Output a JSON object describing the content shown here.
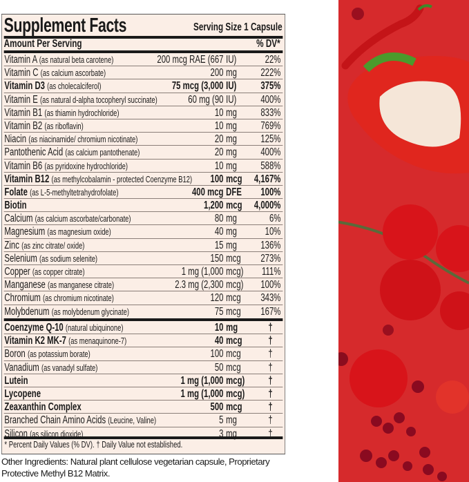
{
  "title": "Supplement Facts",
  "serving_size": "Serving Size 1 Capsule",
  "header": {
    "amount": "Amount Per Serving",
    "dv": "% DV*"
  },
  "section1": [
    {
      "name": "Vitamin A",
      "source": "(as natural beta carotene)",
      "qty": "200 mcg RAE (667",
      "unit": "IU)",
      "dv": "22%",
      "bold": false
    },
    {
      "name": "Vitamin C",
      "source": "(as calcium ascorbate)",
      "qty": "200",
      "unit": "mg",
      "dv": "222%",
      "bold": false
    },
    {
      "name": "Vitamin D3",
      "source": "(as cholecalciferol)",
      "qty": "75 mcg (3,000",
      "unit": "IU)",
      "dv": "375%",
      "bold": true
    },
    {
      "name": "Vitamin E",
      "source": "(as natural d-alpha tocopheryl succinate)",
      "qty": "60 mg (90",
      "unit": "IU)",
      "dv": "400%",
      "bold": false
    },
    {
      "name": "Vitamin B1",
      "source": "(as thiamin hydrochloride)",
      "qty": "10",
      "unit": "mg",
      "dv": "833%",
      "bold": false
    },
    {
      "name": "Vitamin B2",
      "source": "(as riboflavin)",
      "qty": "10",
      "unit": "mg",
      "dv": "769%",
      "bold": false
    },
    {
      "name": "Niacin",
      "source": "(as niacinamide/ chromium nicotinate)",
      "qty": "20",
      "unit": "mg",
      "dv": "125%",
      "bold": false
    },
    {
      "name": "Pantothenic Acid",
      "source": "(as calcium pantothenate)",
      "qty": "20",
      "unit": "mg",
      "dv": "400%",
      "bold": false
    },
    {
      "name": "Vitamin B6",
      "source": "(as pyridoxine hydrochloride)",
      "qty": "10",
      "unit": "mg",
      "dv": "588%",
      "bold": false
    },
    {
      "name": "Vitamin B12",
      "source": "(as methylcobalamin - protected Coenzyme B12)",
      "qty": "100",
      "unit": "mcg",
      "dv": "4,167%",
      "bold": true
    },
    {
      "name": "Folate",
      "source": "(as L-5-methyltetrahydrofolate)",
      "qty": "400 mcg",
      "unit": "DFE",
      "dv": "100%",
      "bold": true
    },
    {
      "name": "Biotin",
      "source": "",
      "qty": "1,200",
      "unit": "mcg",
      "dv": "4,000%",
      "bold": true
    },
    {
      "name": "Calcium",
      "source": "(as calcium ascorbate/carbonate)",
      "qty": "80",
      "unit": "mg",
      "dv": "6%",
      "bold": false
    },
    {
      "name": "Magnesium",
      "source": "(as magnesium oxide)",
      "qty": "40",
      "unit": "mg",
      "dv": "10%",
      "bold": false
    },
    {
      "name": "Zinc",
      "source": "(as zinc citrate/ oxide)",
      "qty": "15",
      "unit": "mg",
      "dv": "136%",
      "bold": false
    },
    {
      "name": "Selenium",
      "source": "(as sodium selenite)",
      "qty": "150",
      "unit": "mcg",
      "dv": "273%",
      "bold": false
    },
    {
      "name": "Copper",
      "source": "(as copper citrate)",
      "qty": "1 mg (1,000",
      "unit": "mcg)",
      "dv": "111%",
      "bold": false
    },
    {
      "name": "Manganese",
      "source": "(as manganese citrate)",
      "qty": "2.3 mg (2,300",
      "unit": "mcg)",
      "dv": "100%",
      "bold": false
    },
    {
      "name": "Chromium",
      "source": "(as chromium nicotinate)",
      "qty": "120",
      "unit": "mcg",
      "dv": "343%",
      "bold": false
    },
    {
      "name": "Molybdenum",
      "source": "(as molybdenum glycinate)",
      "qty": "75",
      "unit": "mcg",
      "dv": "167%",
      "bold": false
    }
  ],
  "section2": [
    {
      "name": "Coenzyme Q-10",
      "source": "(natural ubiquinone)",
      "qty": "10",
      "unit": "mg",
      "dv": "†",
      "bold": true
    },
    {
      "name": "Vitamin K2 MK-7",
      "source": "(as menaquinone-7)",
      "qty": "40",
      "unit": "mcg",
      "dv": "†",
      "bold": true
    },
    {
      "name": "Boron",
      "source": "(as potassium borate)",
      "qty": "100",
      "unit": "mcg",
      "dv": "†",
      "bold": false
    },
    {
      "name": "Vanadium",
      "source": "(as vanadyl sulfate)",
      "qty": "50",
      "unit": "mcg",
      "dv": "†",
      "bold": false
    },
    {
      "name": "Lutein",
      "source": "",
      "qty": "1 mg (1,000",
      "unit": "mcg)",
      "dv": "†",
      "bold": true
    },
    {
      "name": "Lycopene",
      "source": "",
      "qty": "1 mg (1,000",
      "unit": "mcg)",
      "dv": "†",
      "bold": true
    },
    {
      "name": "Zeaxanthin Complex",
      "source": "",
      "qty": "500",
      "unit": "mcg",
      "dv": "†",
      "bold": true
    },
    {
      "name": "Branched Chain Amino Acids",
      "source": "(Leucine, Valine)",
      "qty": "5",
      "unit": "mg",
      "dv": "†",
      "bold": false
    },
    {
      "name": "Silicon",
      "source": "(as silicon dioxide)",
      "qty": "3",
      "unit": "mg",
      "dv": "†",
      "bold": false
    }
  ],
  "footnote": "* Percent Daily Values (% DV). † Daily Value not established.",
  "other_ingredients": "Other Ingredients: Natural plant cellulose vegetarian capsule, Proprietary Protective Methyl B12 Matrix.",
  "colors": {
    "panel_bg": "#fbeee6",
    "art_bg": "#d62a2c",
    "text": "#1a1a1a"
  }
}
